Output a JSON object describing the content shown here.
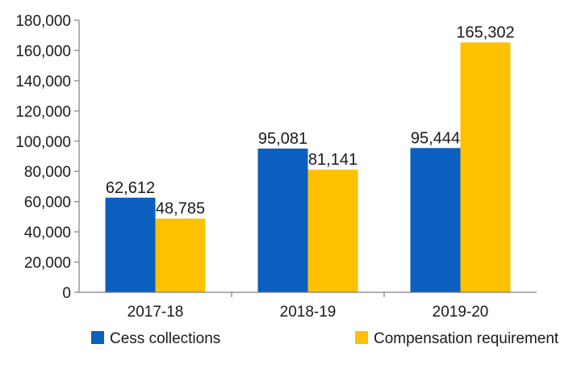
{
  "chart_data": {
    "type": "bar",
    "categories": [
      "2017-18",
      "2018-19",
      "2019-20"
    ],
    "series": [
      {
        "name": "Cess collections",
        "values": [
          62612,
          95081,
          95444
        ],
        "color": "#0a5fbf"
      },
      {
        "name": "Compensation requirement",
        "values": [
          48785,
          81141,
          165302
        ],
        "color": "#ffc000"
      }
    ],
    "data_labels": [
      [
        "62,612",
        "95,081",
        "95,444"
      ],
      [
        "48,785",
        "81,141",
        "165,302"
      ]
    ],
    "y_ticks": [
      0,
      20000,
      40000,
      60000,
      80000,
      100000,
      120000,
      140000,
      160000,
      180000
    ],
    "y_tick_labels": [
      "0",
      "20,000",
      "40,000",
      "60,000",
      "80,000",
      "100,000",
      "120,000",
      "140,000",
      "160,000",
      "180,000"
    ],
    "ylim": [
      0,
      180000
    ],
    "grid": false,
    "legend_position": "bottom"
  }
}
